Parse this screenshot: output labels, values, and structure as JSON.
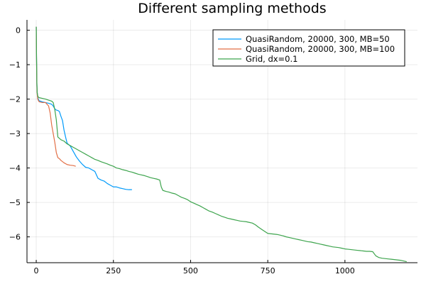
{
  "chart_data": {
    "type": "line",
    "title": "Different sampling methods",
    "xlabel": "",
    "ylabel": "",
    "xlim": [
      -30,
      1235
    ],
    "ylim": [
      -6.75,
      0.3
    ],
    "x_ticks": [
      0,
      250,
      500,
      750,
      1000
    ],
    "x_tick_labels": [
      "0",
      "250",
      "500",
      "750",
      "1000"
    ],
    "y_ticks": [
      0,
      -1,
      -2,
      -3,
      -4,
      -5,
      -6
    ],
    "y_tick_labels": [
      "0",
      "−1",
      "−2",
      "−3",
      "−4",
      "−5",
      "−6"
    ],
    "grid": true,
    "legend_position": "top-right",
    "series": [
      {
        "name": "QuasiRandom, 20000, 300, MB=50",
        "color": "#009AFA",
        "x": [
          0,
          1,
          2,
          3,
          5,
          8,
          10,
          20,
          30,
          40,
          50,
          55,
          60,
          65,
          70,
          75,
          80,
          85,
          90,
          95,
          100,
          110,
          120,
          130,
          140,
          150,
          160,
          170,
          180,
          190,
          200,
          210,
          220,
          230,
          240,
          250,
          260,
          270,
          280,
          290,
          300,
          310
        ],
        "y": [
          0.1,
          -0.85,
          -1.55,
          -1.8,
          -1.95,
          -2.03,
          -2.05,
          -2.08,
          -2.1,
          -2.12,
          -2.15,
          -2.2,
          -2.28,
          -2.32,
          -2.33,
          -2.36,
          -2.5,
          -2.62,
          -2.9,
          -3.1,
          -3.28,
          -3.36,
          -3.52,
          -3.68,
          -3.8,
          -3.9,
          -3.98,
          -4.0,
          -4.05,
          -4.1,
          -4.3,
          -4.35,
          -4.38,
          -4.45,
          -4.5,
          -4.55,
          -4.55,
          -4.58,
          -4.6,
          -4.62,
          -4.63,
          -4.63
        ]
      },
      {
        "name": "QuasiRandom, 20000, 300, MB=100",
        "color": "#E26F46",
        "x": [
          0,
          1,
          2,
          3,
          5,
          8,
          10,
          20,
          30,
          40,
          45,
          50,
          55,
          60,
          65,
          70,
          75,
          80,
          90,
          100,
          110,
          120,
          128
        ],
        "y": [
          0.1,
          -0.9,
          -1.6,
          -1.85,
          -2.0,
          -2.06,
          -2.08,
          -2.1,
          -2.1,
          -2.2,
          -2.4,
          -2.75,
          -3.0,
          -3.25,
          -3.55,
          -3.7,
          -3.73,
          -3.78,
          -3.85,
          -3.9,
          -3.92,
          -3.93,
          -3.95
        ]
      },
      {
        "name": "Grid, dx=0.1",
        "color": "#3DA44D",
        "x": [
          0,
          1,
          2,
          3,
          5,
          8,
          10,
          20,
          30,
          40,
          50,
          55,
          60,
          65,
          70,
          80,
          90,
          100,
          110,
          120,
          130,
          140,
          150,
          160,
          170,
          180,
          190,
          200,
          210,
          220,
          230,
          240,
          250,
          260,
          270,
          280,
          290,
          300,
          310,
          320,
          330,
          340,
          350,
          360,
          370,
          380,
          390,
          400,
          405,
          410,
          420,
          430,
          440,
          450,
          460,
          470,
          480,
          490,
          500,
          510,
          520,
          530,
          540,
          550,
          560,
          570,
          580,
          590,
          600,
          610,
          620,
          630,
          640,
          650,
          660,
          670,
          680,
          690,
          700,
          710,
          720,
          730,
          740,
          750,
          760,
          770,
          780,
          790,
          800,
          810,
          820,
          830,
          840,
          850,
          860,
          870,
          880,
          890,
          900,
          910,
          920,
          930,
          940,
          950,
          960,
          970,
          980,
          990,
          1000,
          1010,
          1020,
          1030,
          1040,
          1050,
          1060,
          1070,
          1080,
          1090,
          1100,
          1110,
          1120,
          1130,
          1140,
          1150,
          1160,
          1170,
          1180,
          1190,
          1200
        ],
        "y": [
          0.1,
          -0.8,
          -1.5,
          -1.8,
          -1.92,
          -1.95,
          -1.96,
          -1.98,
          -2.0,
          -2.03,
          -2.06,
          -2.1,
          -2.3,
          -2.6,
          -3.1,
          -3.18,
          -3.22,
          -3.3,
          -3.35,
          -3.4,
          -3.45,
          -3.5,
          -3.55,
          -3.6,
          -3.65,
          -3.7,
          -3.75,
          -3.78,
          -3.82,
          -3.85,
          -3.88,
          -3.92,
          -3.95,
          -4.0,
          -4.02,
          -4.05,
          -4.07,
          -4.1,
          -4.12,
          -4.15,
          -4.18,
          -4.2,
          -4.22,
          -4.25,
          -4.28,
          -4.3,
          -4.32,
          -4.35,
          -4.55,
          -4.65,
          -4.68,
          -4.7,
          -4.73,
          -4.75,
          -4.8,
          -4.85,
          -4.88,
          -4.92,
          -4.98,
          -5.02,
          -5.06,
          -5.1,
          -5.15,
          -5.2,
          -5.25,
          -5.28,
          -5.32,
          -5.36,
          -5.4,
          -5.43,
          -5.46,
          -5.48,
          -5.5,
          -5.52,
          -5.54,
          -5.55,
          -5.56,
          -5.58,
          -5.6,
          -5.65,
          -5.72,
          -5.78,
          -5.84,
          -5.9,
          -5.91,
          -5.92,
          -5.93,
          -5.95,
          -5.97,
          -6.0,
          -6.02,
          -6.04,
          -6.06,
          -6.08,
          -6.1,
          -6.12,
          -6.14,
          -6.15,
          -6.17,
          -6.19,
          -6.21,
          -6.23,
          -6.25,
          -6.27,
          -6.29,
          -6.3,
          -6.31,
          -6.33,
          -6.35,
          -6.36,
          -6.37,
          -6.38,
          -6.39,
          -6.4,
          -6.41,
          -6.42,
          -6.42,
          -6.43,
          -6.55,
          -6.6,
          -6.62,
          -6.63,
          -6.64,
          -6.65,
          -6.66,
          -6.67,
          -6.68,
          -6.7,
          -6.72
        ]
      }
    ]
  }
}
